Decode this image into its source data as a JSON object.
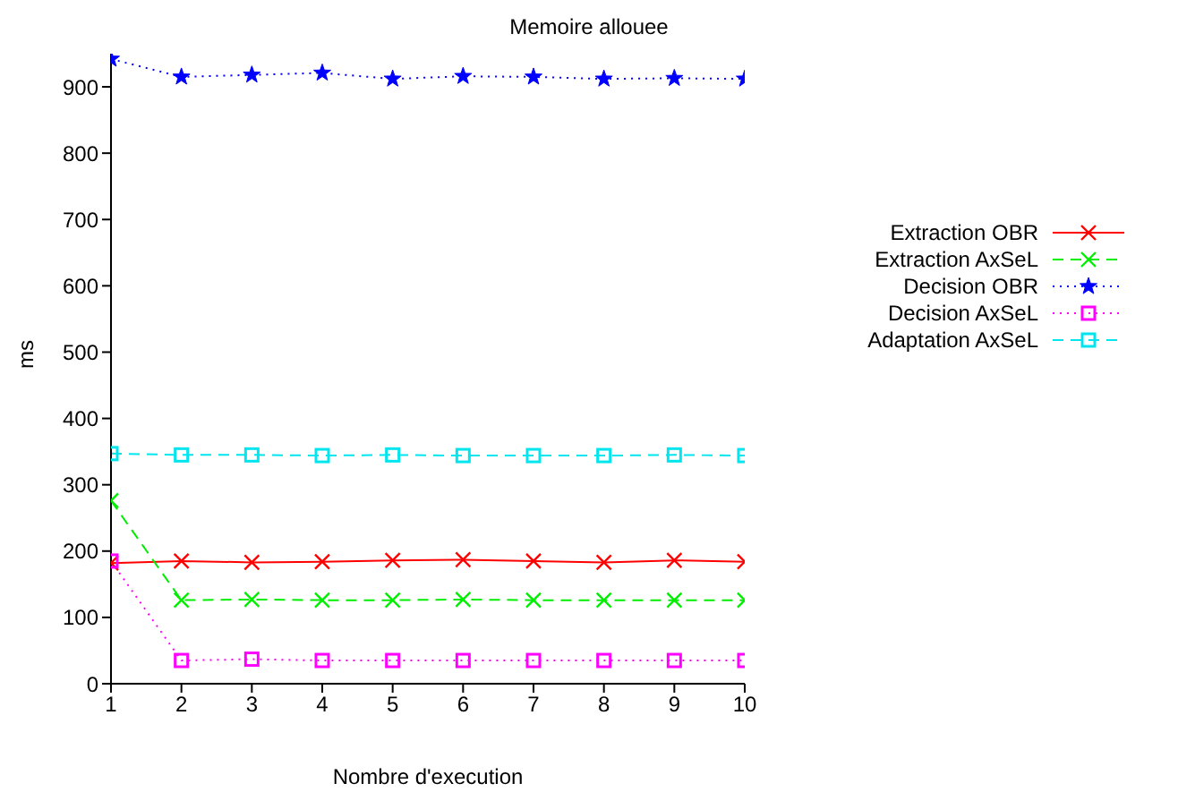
{
  "chart_data": {
    "type": "line",
    "title": "Memoire allouee",
    "xlabel": "Nombre d'execution",
    "ylabel": "ms",
    "x": [
      1,
      2,
      3,
      4,
      5,
      6,
      7,
      8,
      9,
      10
    ],
    "xlim": [
      1,
      10
    ],
    "xticks": [
      1,
      2,
      3,
      4,
      5,
      6,
      7,
      8,
      9,
      10
    ],
    "ylim": [
      0,
      950
    ],
    "yticks": [
      0,
      100,
      200,
      300,
      400,
      500,
      600,
      700,
      800,
      900
    ],
    "grid": false,
    "legend": "top right",
    "series": [
      {
        "name": "Extraction OBR",
        "color": "#ff0000",
        "marker": "cross",
        "line_style": "solid",
        "values": [
          182,
          185,
          183,
          184,
          186,
          187,
          185,
          183,
          186,
          184
        ]
      },
      {
        "name": "Extraction AxSeL",
        "color": "#00ee00",
        "marker": "cross",
        "line_style": "dashed",
        "values": [
          276,
          126,
          127,
          126,
          126,
          127,
          126,
          126,
          126,
          126
        ]
      },
      {
        "name": "Decision OBR",
        "color": "#0000ff",
        "marker": "star",
        "line_style": "dotted",
        "values": [
          942,
          915,
          918,
          921,
          912,
          916,
          915,
          912,
          913,
          912
        ]
      },
      {
        "name": "Decision AxSeL",
        "color": "#ff00ff",
        "marker": "square",
        "line_style": "dotted",
        "values": [
          185,
          35,
          37,
          35,
          35,
          35,
          35,
          35,
          35,
          35
        ]
      },
      {
        "name": "Adaptation AxSeL",
        "color": "#00e5ee",
        "marker": "square",
        "line_style": "dashed",
        "values": [
          347,
          345,
          345,
          344,
          345,
          344,
          344,
          344,
          345,
          344
        ]
      }
    ]
  }
}
